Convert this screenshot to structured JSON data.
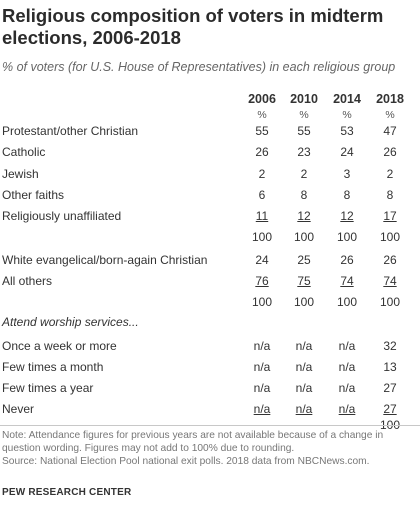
{
  "header": {
    "title": "Religious composition of voters in midterm elections, 2006-2018",
    "subtitle": "% of voters (for U.S. House of Representatives) in each religious group"
  },
  "columns": [
    {
      "year": "2006",
      "unit": "%"
    },
    {
      "year": "2010",
      "unit": "%"
    },
    {
      "year": "2014",
      "unit": "%"
    },
    {
      "year": "2018",
      "unit": "%"
    }
  ],
  "section_label": "Attend worship services...",
  "chart_data": {
    "type": "table",
    "title": "Religious composition of voters in midterm elections, 2006-2018",
    "subtitle": "% of voters (for U.S. House of Representatives) in each religious group",
    "columns": [
      "2006",
      "2010",
      "2014",
      "2018"
    ],
    "blocks": [
      {
        "rows": [
          {
            "label": "Protestant/other Christian",
            "values": [
              "55",
              "55",
              "53",
              "47"
            ]
          },
          {
            "label": "Catholic",
            "values": [
              "26",
              "23",
              "24",
              "26"
            ]
          },
          {
            "label": "Jewish",
            "values": [
              "2",
              "2",
              "3",
              "2"
            ]
          },
          {
            "label": "Other faiths",
            "values": [
              "6",
              "8",
              "8",
              "8"
            ]
          },
          {
            "label": "Religiously unaffiliated",
            "values": [
              "11",
              "12",
              "12",
              "17"
            ]
          }
        ],
        "total": [
          "100",
          "100",
          "100",
          "100"
        ]
      },
      {
        "rows": [
          {
            "label": "White evangelical/born-again Christian",
            "values": [
              "24",
              "25",
              "26",
              "26"
            ]
          },
          {
            "label": "All others",
            "values": [
              "76",
              "75",
              "74",
              "74"
            ]
          }
        ],
        "total": [
          "100",
          "100",
          "100",
          "100"
        ]
      },
      {
        "rows": [
          {
            "label": "Once a week or more",
            "values": [
              "n/a",
              "n/a",
              "n/a",
              "32"
            ]
          },
          {
            "label": "Few times a month",
            "values": [
              "n/a",
              "n/a",
              "n/a",
              "13"
            ]
          },
          {
            "label": "Few times a year",
            "values": [
              "n/a",
              "n/a",
              "n/a",
              "27"
            ]
          },
          {
            "label": "Never",
            "values": [
              "n/a",
              "n/a",
              "n/a",
              "27"
            ]
          }
        ],
        "total": [
          "",
          "",
          "",
          "100"
        ]
      }
    ]
  },
  "footer": {
    "note": "Note: Attendance figures for previous years are not available because of a change in question wording. Figures may not add to 100% due to rounding.",
    "source": "Source: National Election Pool national exit polls. 2018 data from NBCNews.com.",
    "brand": "PEW RESEARCH CENTER"
  }
}
